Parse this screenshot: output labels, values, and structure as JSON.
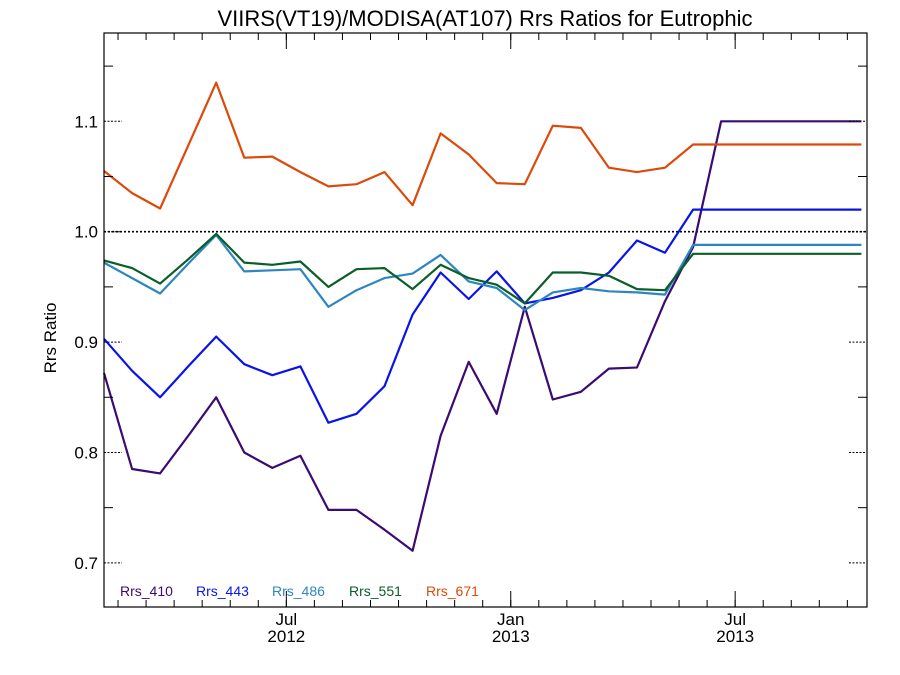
{
  "chart_data": {
    "type": "line",
    "title": "VIIRS(VT19)/MODISA(AT107)  Rrs Ratios for Eutrophic",
    "ylabel": "Rrs Ratio",
    "xlabel": "",
    "ylim": [
      0.66,
      1.18
    ],
    "xlim": [
      0,
      27.2
    ],
    "yticks": [
      {
        "value": 0.7,
        "label": "0.7"
      },
      {
        "value": 0.8,
        "label": "0.8"
      },
      {
        "value": 0.9,
        "label": "0.9"
      },
      {
        "value": 1.0,
        "label": "1.0"
      },
      {
        "value": 1.1,
        "label": "1.1"
      }
    ],
    "xticks": [
      {
        "value": 6.5,
        "month": "Jul",
        "year": "2012"
      },
      {
        "value": 14.5,
        "month": "Jan",
        "year": "2013"
      },
      {
        "value": 22.5,
        "month": "Jul",
        "year": "2013"
      }
    ],
    "x": [
      0,
      1,
      2,
      3,
      4,
      5,
      6,
      7,
      8,
      9,
      10,
      11,
      12,
      13,
      14,
      15,
      16,
      17,
      18,
      19,
      20,
      21,
      22,
      23,
      24,
      25,
      26,
      27
    ],
    "reference_line": 1.0,
    "legend_position": "bottom-left",
    "series": [
      {
        "name": "Rrs_410",
        "color": "#3b0a73",
        "values": [
          0.872,
          0.785,
          0.781,
          0.815,
          0.85,
          0.8,
          0.786,
          0.797,
          0.748,
          0.748,
          0.73,
          0.711,
          0.815,
          0.882,
          0.835,
          0.932,
          0.848,
          0.855,
          0.876,
          0.877,
          0.937,
          0.986,
          1.1,
          1.1,
          1.1,
          1.1,
          1.1,
          1.1
        ]
      },
      {
        "name": "Rrs_443",
        "color": "#0a14e6",
        "values": [
          0.903,
          0.874,
          0.85,
          0.878,
          0.905,
          0.88,
          0.87,
          0.878,
          0.827,
          0.835,
          0.86,
          0.925,
          0.963,
          0.939,
          0.964,
          0.935,
          0.94,
          0.947,
          0.963,
          0.992,
          0.981,
          1.02,
          1.02,
          1.02,
          1.02,
          1.02,
          1.02,
          1.02
        ]
      },
      {
        "name": "Rrs_486",
        "color": "#2e86c1",
        "values": [
          0.972,
          0.958,
          0.944,
          0.971,
          0.997,
          0.964,
          0.965,
          0.966,
          0.932,
          0.947,
          0.958,
          0.962,
          0.979,
          0.955,
          0.949,
          0.929,
          0.945,
          0.949,
          0.946,
          0.945,
          0.943,
          0.988,
          0.988,
          0.988,
          0.988,
          0.988,
          0.988,
          0.988
        ]
      },
      {
        "name": "Rrs_551",
        "color": "#0a5e28",
        "values": [
          0.974,
          0.967,
          0.953,
          0.975,
          0.998,
          0.972,
          0.97,
          0.973,
          0.95,
          0.966,
          0.967,
          0.948,
          0.97,
          0.958,
          0.952,
          0.935,
          0.963,
          0.963,
          0.96,
          0.948,
          0.947,
          0.98,
          0.98,
          0.98,
          0.98,
          0.98,
          0.98,
          0.98
        ]
      },
      {
        "name": "Rrs_671",
        "color": "#dc4a0a",
        "values": [
          1.055,
          1.035,
          1.021,
          1.078,
          1.135,
          1.067,
          1.068,
          1.054,
          1.041,
          1.043,
          1.054,
          1.024,
          1.089,
          1.07,
          1.044,
          1.043,
          1.096,
          1.094,
          1.058,
          1.054,
          1.058,
          1.079,
          1.079,
          1.079,
          1.079,
          1.079,
          1.079,
          1.079
        ]
      }
    ]
  }
}
